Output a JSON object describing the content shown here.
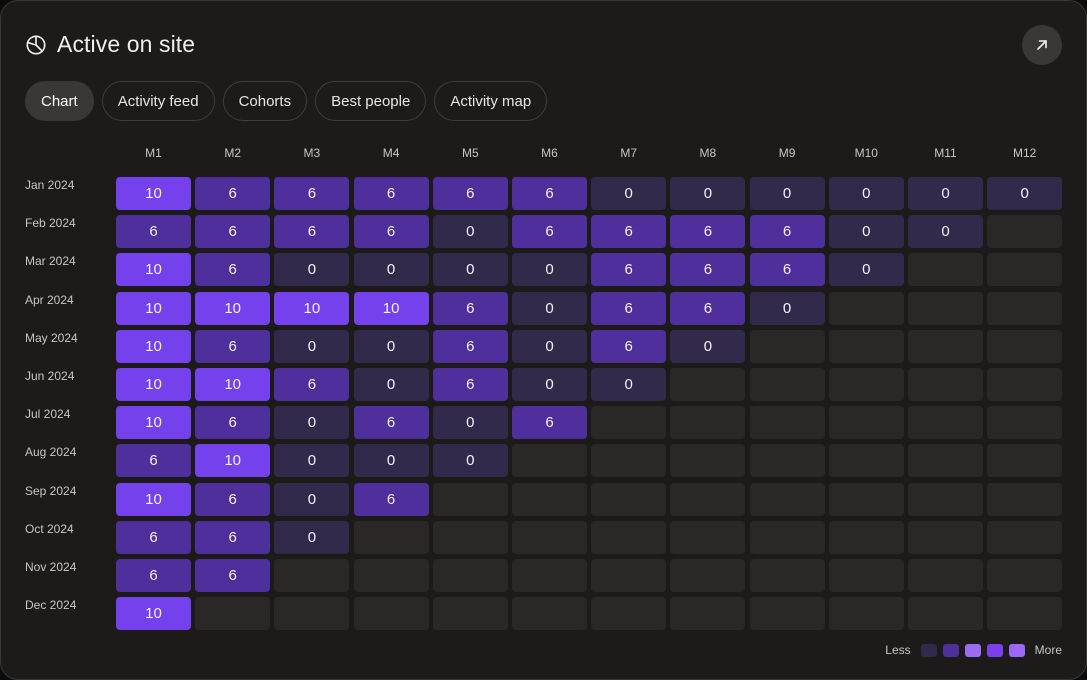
{
  "title": "Active on site",
  "icons": {
    "title": "pie-chart-icon",
    "expand": "arrow-up-right-icon"
  },
  "tabs": [
    {
      "label": "Chart",
      "active": true
    },
    {
      "label": "Activity feed",
      "active": false
    },
    {
      "label": "Cohorts",
      "active": false
    },
    {
      "label": "Best people",
      "active": false
    },
    {
      "label": "Activity map",
      "active": false
    }
  ],
  "colors": {
    "card": "#1c1b1a",
    "empty": "#2a2726",
    "level_0": "#322a4a",
    "level_6": "#4f2f9b",
    "level_10": "#7541ec"
  },
  "legend": {
    "less": "Less",
    "more": "More",
    "swatches": [
      "#322a4a",
      "#4f2f9b",
      "#9b6cf2",
      "#7b3ff0",
      "#9a68f4"
    ]
  },
  "chart_data": {
    "type": "heatmap",
    "columns": [
      "M1",
      "M2",
      "M3",
      "M4",
      "M5",
      "M6",
      "M7",
      "M8",
      "M9",
      "M10",
      "M11",
      "M12"
    ],
    "rows": [
      "Jan 2024",
      "Feb 2024",
      "Mar 2024",
      "Apr 2024",
      "May 2024",
      "Jun 2024",
      "Jul 2024",
      "Aug 2024",
      "Sep 2024",
      "Oct 2024",
      "Nov 2024",
      "Dec 2024"
    ],
    "values": [
      [
        10,
        6,
        6,
        6,
        6,
        6,
        0,
        0,
        0,
        0,
        0,
        0
      ],
      [
        6,
        6,
        6,
        6,
        0,
        6,
        6,
        6,
        6,
        0,
        0,
        null
      ],
      [
        10,
        6,
        0,
        0,
        0,
        0,
        6,
        6,
        6,
        0,
        null,
        null
      ],
      [
        10,
        10,
        10,
        10,
        6,
        0,
        6,
        6,
        0,
        null,
        null,
        null
      ],
      [
        10,
        6,
        0,
        0,
        6,
        0,
        6,
        0,
        null,
        null,
        null,
        null
      ],
      [
        10,
        10,
        6,
        0,
        6,
        0,
        0,
        null,
        null,
        null,
        null,
        null
      ],
      [
        10,
        6,
        0,
        6,
        0,
        6,
        null,
        null,
        null,
        null,
        null,
        null
      ],
      [
        6,
        10,
        0,
        0,
        0,
        null,
        null,
        null,
        null,
        null,
        null,
        null
      ],
      [
        10,
        6,
        0,
        6,
        null,
        null,
        null,
        null,
        null,
        null,
        null,
        null
      ],
      [
        6,
        6,
        0,
        null,
        null,
        null,
        null,
        null,
        null,
        null,
        null,
        null
      ],
      [
        6,
        6,
        null,
        null,
        null,
        null,
        null,
        null,
        null,
        null,
        null,
        null
      ],
      [
        10,
        null,
        null,
        null,
        null,
        null,
        null,
        null,
        null,
        null,
        null,
        null
      ]
    ],
    "legend_placement": "bottom-right"
  }
}
